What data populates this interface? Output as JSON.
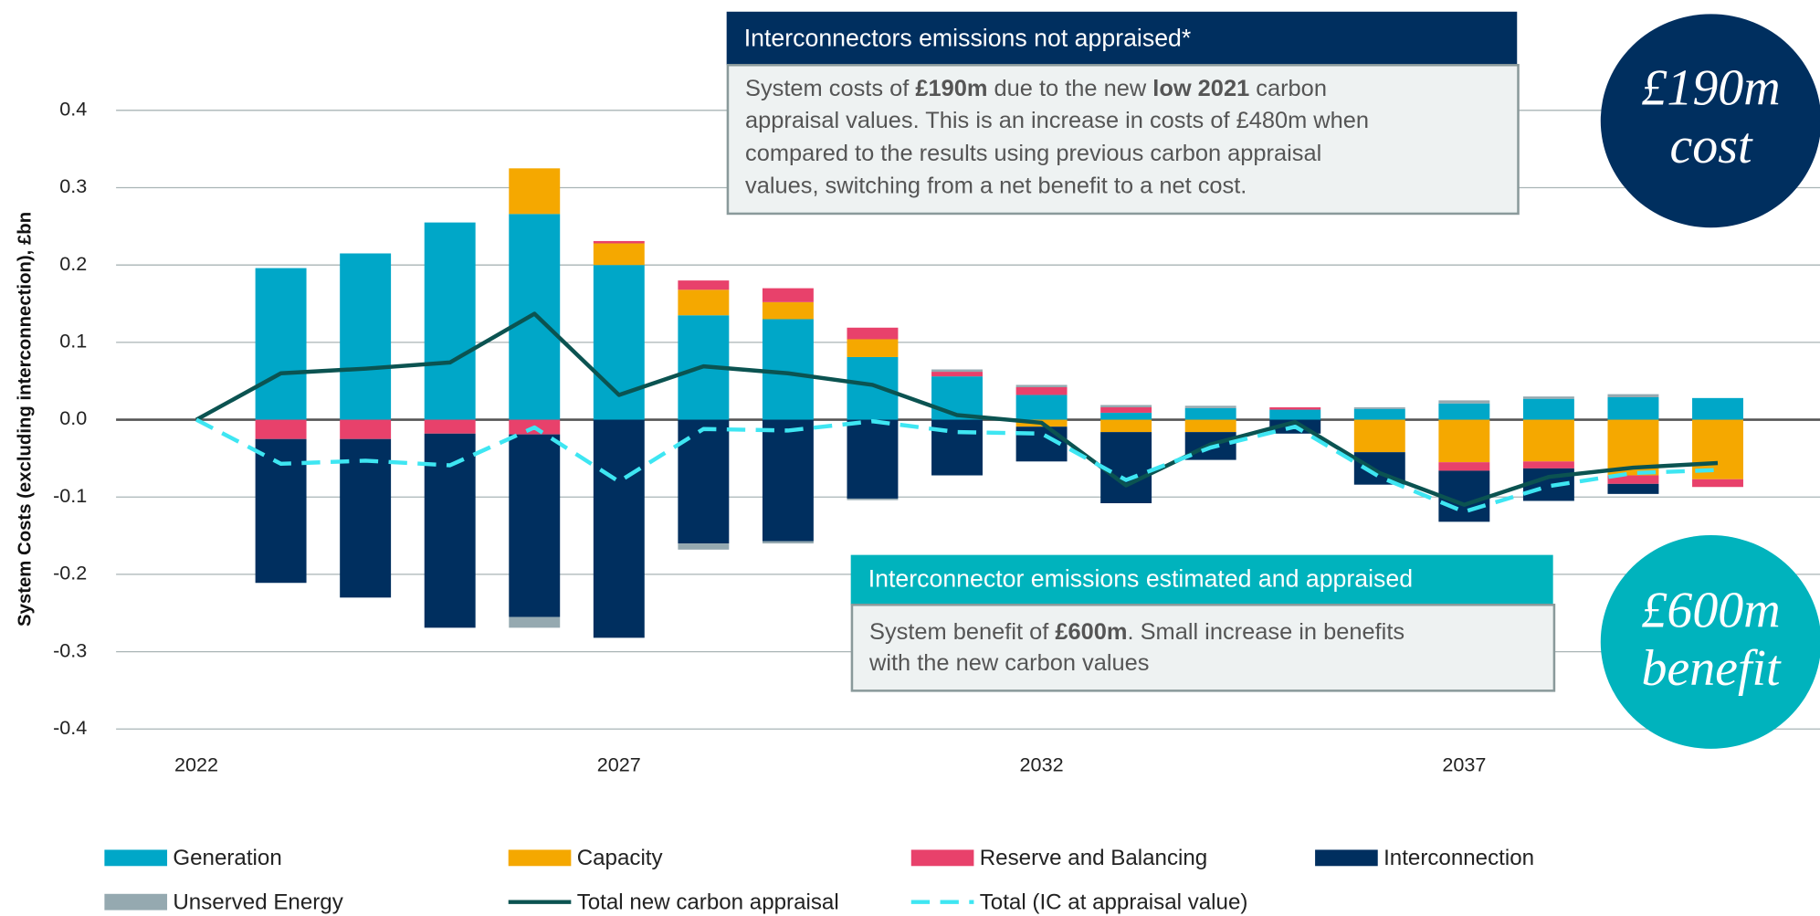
{
  "chart_data": {
    "type": "bar",
    "y_label": "System Costs (excluding interconnection), £bn",
    "x": [
      2022,
      2023,
      2024,
      2025,
      2026,
      2027,
      2028,
      2029,
      2030,
      2031,
      2032,
      2033,
      2034,
      2035,
      2036,
      2037,
      2038,
      2039,
      2040
    ],
    "xlim": [
      2021.05,
      2041.21
    ],
    "xticks": [
      2022,
      2027,
      2032,
      2037
    ],
    "ylim": [
      -0.4,
      0.4
    ],
    "yticks": [
      -0.4,
      -0.3,
      -0.2,
      -0.1,
      {
        "value": 0,
        "label": "0.0"
      },
      0.1,
      0.2,
      0.3,
      0.4
    ],
    "grid": true,
    "series": [
      {
        "name": "Generation",
        "color": "#00a7c8",
        "values": [
          null,
          0.196,
          0.215,
          0.255,
          0.266,
          0.2,
          0.135,
          0.13,
          0.081,
          0.056,
          0.032,
          0.009,
          0.015,
          0.013,
          0.014,
          0.021,
          0.027,
          0.029,
          0.028
        ]
      },
      {
        "name": "Capacity",
        "color": "#f5a800",
        "values": [
          null,
          0,
          0,
          0,
          0.059,
          0.028,
          0.033,
          0.022,
          0.023,
          0,
          -0.009,
          -0.016,
          -0.016,
          0,
          -0.042,
          -0.055,
          -0.054,
          -0.072,
          -0.077
        ]
      },
      {
        "name": "Reserve and Balancing",
        "color": "#e8416b",
        "values": [
          null,
          -0.025,
          -0.025,
          -0.018,
          -0.019,
          0.003,
          0.012,
          0.018,
          0.015,
          0.006,
          0.01,
          0.007,
          0,
          0.003,
          0,
          -0.011,
          -0.009,
          -0.011,
          -0.01
        ]
      },
      {
        "name": "Interconnection",
        "color": "#002f5f",
        "values": [
          null,
          -0.186,
          -0.205,
          -0.251,
          -0.236,
          -0.282,
          -0.16,
          -0.157,
          -0.102,
          -0.072,
          -0.045,
          -0.092,
          -0.036,
          -0.018,
          -0.042,
          -0.066,
          -0.042,
          -0.013,
          0
        ]
      },
      {
        "name": "Unserved Energy",
        "color": "#95a9b0",
        "values": [
          null,
          0,
          0,
          0,
          -0.014,
          0,
          -0.008,
          -0.003,
          -0.002,
          0.003,
          0.003,
          0.003,
          0.003,
          0,
          0.002,
          0.004,
          0.003,
          0.004,
          0
        ]
      },
      {
        "name": "Total new carbon appraisal",
        "type": "line",
        "color": "#0b5351",
        "values": [
          0,
          0.06,
          0.066,
          0.074,
          0.137,
          0.032,
          0.069,
          0.06,
          0.045,
          0.006,
          -0.004,
          -0.085,
          -0.032,
          -0.003,
          -0.069,
          -0.11,
          -0.074,
          -0.062,
          -0.056
        ]
      },
      {
        "name": "Total (IC at appraisal value)",
        "type": "line",
        "dashed": true,
        "color": "#3ee6f2",
        "values": [
          0,
          -0.057,
          -0.053,
          -0.059,
          -0.01,
          -0.08,
          -0.012,
          -0.014,
          -0.002,
          -0.016,
          -0.018,
          -0.078,
          -0.036,
          -0.009,
          -0.074,
          -0.119,
          -0.086,
          -0.069,
          -0.065
        ]
      }
    ]
  },
  "annotations": [
    {
      "title": "Interconnectors emissions not appraised*",
      "lines": [
        [
          "System costs of ",
          "£190m",
          " due to the new ",
          "low 2021",
          " carbon"
        ],
        [
          "appraisal values. This is an increase in costs of £480m when"
        ],
        [
          "compared to the results using previous carbon appraisal"
        ],
        [
          "values, switching from a net benefit to a net cost."
        ]
      ],
      "badge": [
        "£190m",
        "cost"
      ]
    },
    {
      "title": "Interconnector emissions estimated and appraised",
      "lines": [
        [
          "System benefit of ",
          "£600m",
          ". Small increase in benefits"
        ],
        [
          "with the new carbon values"
        ]
      ],
      "badge": [
        "£600m",
        "benefit"
      ]
    }
  ]
}
